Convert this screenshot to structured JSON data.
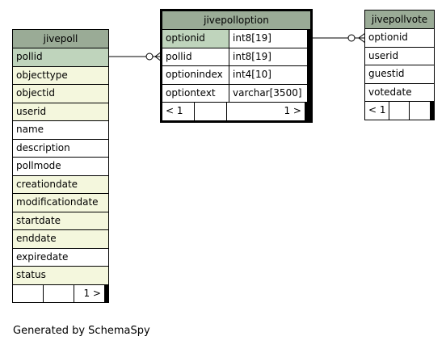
{
  "tables": {
    "jivepoll": {
      "name": "jivepoll",
      "columns": [
        {
          "name": "pollid",
          "kind": "pk"
        },
        {
          "name": "objecttype",
          "kind": "fk"
        },
        {
          "name": "objectid",
          "kind": "fk"
        },
        {
          "name": "userid",
          "kind": "fk"
        },
        {
          "name": "name",
          "kind": "plain"
        },
        {
          "name": "description",
          "kind": "plain"
        },
        {
          "name": "pollmode",
          "kind": "plain"
        },
        {
          "name": "creationdate",
          "kind": "fk"
        },
        {
          "name": "modificationdate",
          "kind": "fk"
        },
        {
          "name": "startdate",
          "kind": "fk"
        },
        {
          "name": "enddate",
          "kind": "fk"
        },
        {
          "name": "expiredate",
          "kind": "plain"
        },
        {
          "name": "status",
          "kind": "fk"
        }
      ],
      "footer": [
        "",
        "",
        "1 >"
      ]
    },
    "jivepolloption": {
      "name": "jivepolloption",
      "columns": [
        {
          "name": "optionid",
          "type": "int8[19]",
          "kind": "pk"
        },
        {
          "name": "pollid",
          "type": "int8[19]",
          "kind": "plain"
        },
        {
          "name": "optionindex",
          "type": "int4[10]",
          "kind": "plain"
        },
        {
          "name": "optiontext",
          "type": "varchar[3500]",
          "kind": "plain"
        }
      ],
      "footer": [
        "< 1",
        "",
        "1 >"
      ]
    },
    "jivepollvote": {
      "name": "jivepollvote",
      "columns": [
        {
          "name": "optionid",
          "kind": "plain"
        },
        {
          "name": "userid",
          "kind": "plain"
        },
        {
          "name": "guestid",
          "kind": "plain"
        },
        {
          "name": "votedate",
          "kind": "plain"
        }
      ],
      "footer": [
        "< 1",
        "",
        ""
      ]
    }
  },
  "caption": "Generated by SchemaSpy"
}
